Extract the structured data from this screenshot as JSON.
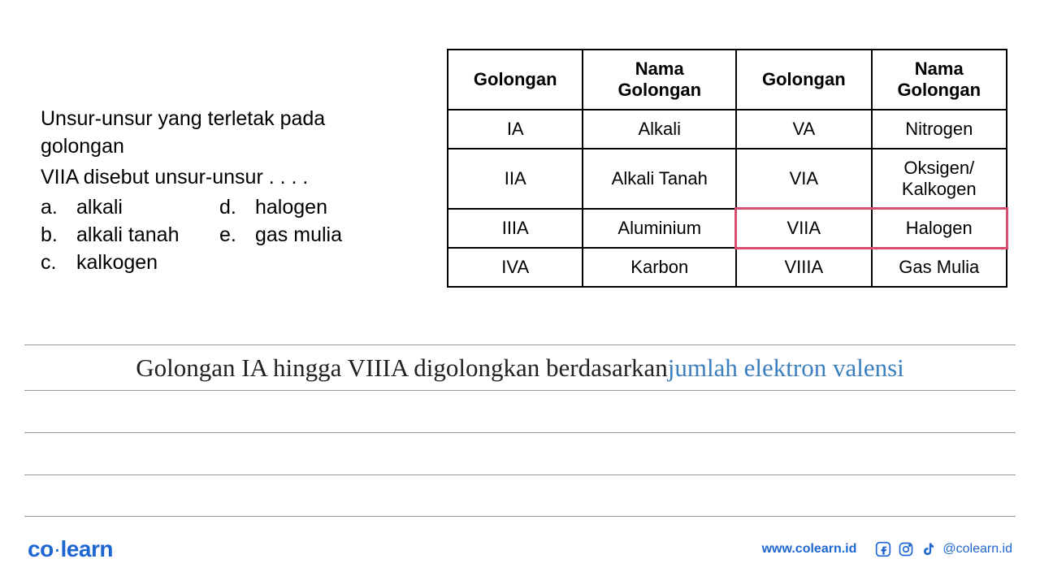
{
  "question": {
    "line1": "Unsur-unsur yang terletak pada golongan",
    "line2": "VIIA  disebut  unsur-unsur . . . .",
    "options": [
      {
        "letter": "a.",
        "text": "alkali"
      },
      {
        "letter": "b.",
        "text": "alkali tanah"
      },
      {
        "letter": "c.",
        "text": "kalkogen"
      },
      {
        "letter": "d.",
        "text": "halogen"
      },
      {
        "letter": "e.",
        "text": "gas mulia"
      }
    ]
  },
  "table": {
    "type": "table",
    "columns": [
      "Golongan",
      "Nama Golongan",
      "Golongan",
      "Nama Golongan"
    ],
    "rows": [
      [
        "IA",
        "Alkali",
        "VA",
        "Nitrogen"
      ],
      [
        "IIA",
        "Alkali Tanah",
        "VIA",
        "Oksigen/ Kalkogen"
      ],
      [
        "IIIA",
        "Aluminium",
        "VIIA",
        "Halogen"
      ],
      [
        "IVA",
        "Karbon",
        "VIIIA",
        "Gas Mulia"
      ]
    ],
    "border_color": "#000000",
    "highlight": {
      "row_index": 2,
      "col_start": 2,
      "col_end": 3,
      "color": "#d94b6f"
    }
  },
  "statement": {
    "prefix": "Golongan IA hingga VIIIA digolongkan berdasarkan ",
    "highlight": "jumlah elektron valensi",
    "highlight_color": "#3a7fbf"
  },
  "footer": {
    "logo_left": "co",
    "logo_right": "learn",
    "url": "www.colearn.id",
    "handle": "@colearn.id"
  },
  "colors": {
    "brand_blue": "#1e66d0",
    "text": "#000000",
    "rule": "#999999"
  }
}
